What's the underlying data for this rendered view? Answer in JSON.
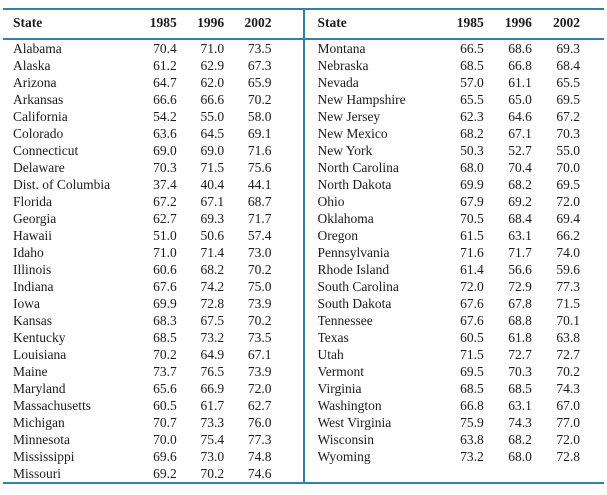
{
  "colors": {
    "rule": "#3182a4",
    "text": "#1b1b1b",
    "background": "#ffffff"
  },
  "table": {
    "left_half": {
      "columns": [
        "State",
        "1985",
        "1996",
        "2002"
      ],
      "rows": [
        [
          "Alabama",
          "70.4",
          "71.0",
          "73.5"
        ],
        [
          "Alaska",
          "61.2",
          "62.9",
          "67.3"
        ],
        [
          "Arizona",
          "64.7",
          "62.0",
          "65.9"
        ],
        [
          "Arkansas",
          "66.6",
          "66.6",
          "70.2"
        ],
        [
          "California",
          "54.2",
          "55.0",
          "58.0"
        ],
        [
          "Colorado",
          "63.6",
          "64.5",
          "69.1"
        ],
        [
          "Connecticut",
          "69.0",
          "69.0",
          "71.6"
        ],
        [
          "Delaware",
          "70.3",
          "71.5",
          "75.6"
        ],
        [
          "Dist. of Columbia",
          "37.4",
          "40.4",
          "44.1"
        ],
        [
          "Florida",
          "67.2",
          "67.1",
          "68.7"
        ],
        [
          "Georgia",
          "62.7",
          "69.3",
          "71.7"
        ],
        [
          "Hawaii",
          "51.0",
          "50.6",
          "57.4"
        ],
        [
          "Idaho",
          "71.0",
          "71.4",
          "73.0"
        ],
        [
          "Illinois",
          "60.6",
          "68.2",
          "70.2"
        ],
        [
          "Indiana",
          "67.6",
          "74.2",
          "75.0"
        ],
        [
          "Iowa",
          "69.9",
          "72.8",
          "73.9"
        ],
        [
          "Kansas",
          "68.3",
          "67.5",
          "70.2"
        ],
        [
          "Kentucky",
          "68.5",
          "73.2",
          "73.5"
        ],
        [
          "Louisiana",
          "70.2",
          "64.9",
          "67.1"
        ],
        [
          "Maine",
          "73.7",
          "76.5",
          "73.9"
        ],
        [
          "Maryland",
          "65.6",
          "66.9",
          "72.0"
        ],
        [
          "Massachusetts",
          "60.5",
          "61.7",
          "62.7"
        ],
        [
          "Michigan",
          "70.7",
          "73.3",
          "76.0"
        ],
        [
          "Minnesota",
          "70.0",
          "75.4",
          "77.3"
        ],
        [
          "Mississippi",
          "69.6",
          "73.0",
          "74.8"
        ],
        [
          "Missouri",
          "69.2",
          "70.2",
          "74.6"
        ]
      ]
    },
    "right_half": {
      "columns": [
        "State",
        "1985",
        "1996",
        "2002"
      ],
      "rows": [
        [
          "Montana",
          "66.5",
          "68.6",
          "69.3"
        ],
        [
          "Nebraska",
          "68.5",
          "66.8",
          "68.4"
        ],
        [
          "Nevada",
          "57.0",
          "61.1",
          "65.5"
        ],
        [
          "New Hampshire",
          "65.5",
          "65.0",
          "69.5"
        ],
        [
          "New Jersey",
          "62.3",
          "64.6",
          "67.2"
        ],
        [
          "New Mexico",
          "68.2",
          "67.1",
          "70.3"
        ],
        [
          "New York",
          "50.3",
          "52.7",
          "55.0"
        ],
        [
          "North Carolina",
          "68.0",
          "70.4",
          "70.0"
        ],
        [
          "North Dakota",
          "69.9",
          "68.2",
          "69.5"
        ],
        [
          "Ohio",
          "67.9",
          "69.2",
          "72.0"
        ],
        [
          "Oklahoma",
          "70.5",
          "68.4",
          "69.4"
        ],
        [
          "Oregon",
          "61.5",
          "63.1",
          "66.2"
        ],
        [
          "Pennsylvania",
          "71.6",
          "71.7",
          "74.0"
        ],
        [
          "Rhode Island",
          "61.4",
          "56.6",
          "59.6"
        ],
        [
          "South Carolina",
          "72.0",
          "72.9",
          "77.3"
        ],
        [
          "South Dakota",
          "67.6",
          "67.8",
          "71.5"
        ],
        [
          "Tennessee",
          "67.6",
          "68.8",
          "70.1"
        ],
        [
          "Texas",
          "60.5",
          "61.8",
          "63.8"
        ],
        [
          "Utah",
          "71.5",
          "72.7",
          "72.7"
        ],
        [
          "Vermont",
          "69.5",
          "70.3",
          "70.2"
        ],
        [
          "Virginia",
          "68.5",
          "68.5",
          "74.3"
        ],
        [
          "Washington",
          "66.8",
          "63.1",
          "67.0"
        ],
        [
          "West Virginia",
          "75.9",
          "74.3",
          "77.0"
        ],
        [
          "Wisconsin",
          "63.8",
          "68.2",
          "72.0"
        ],
        [
          "Wyoming",
          "73.2",
          "68.0",
          "72.8"
        ]
      ]
    }
  }
}
